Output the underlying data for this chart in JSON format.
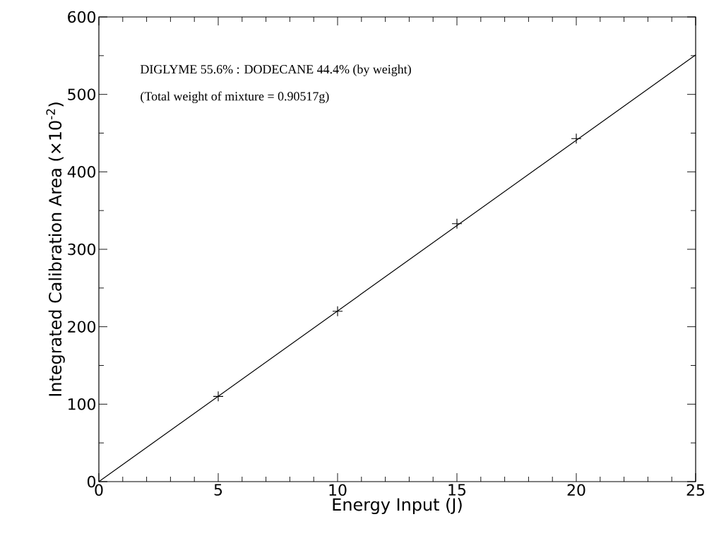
{
  "chart_data": {
    "type": "scatter",
    "xlabel": "Energy Input (J)",
    "ylabel": "Integrated Calibration Area (×10$^{-2}$)",
    "annotations": [
      "DIGLYME 55.6% : DODECANE 44.4% (by weight)",
      "(Total weight of mixture = 0.90517g)"
    ],
    "xlim": [
      0,
      25
    ],
    "ylim": [
      0,
      600
    ],
    "xticks": [
      0,
      5,
      10,
      15,
      20,
      25
    ],
    "yticks": [
      0,
      100,
      200,
      300,
      400,
      500,
      600
    ],
    "series": [
      {
        "x": [
          5,
          10,
          15,
          20
        ],
        "values": [
          110,
          220,
          333,
          443
        ],
        "color": "#000000",
        "marker": "cross"
      },
      {
        "type": "line",
        "x": [
          0,
          25
        ],
        "values": [
          0,
          551
        ],
        "color": "#000000",
        "marker": "none",
        "line_style": "solid"
      }
    ]
  }
}
